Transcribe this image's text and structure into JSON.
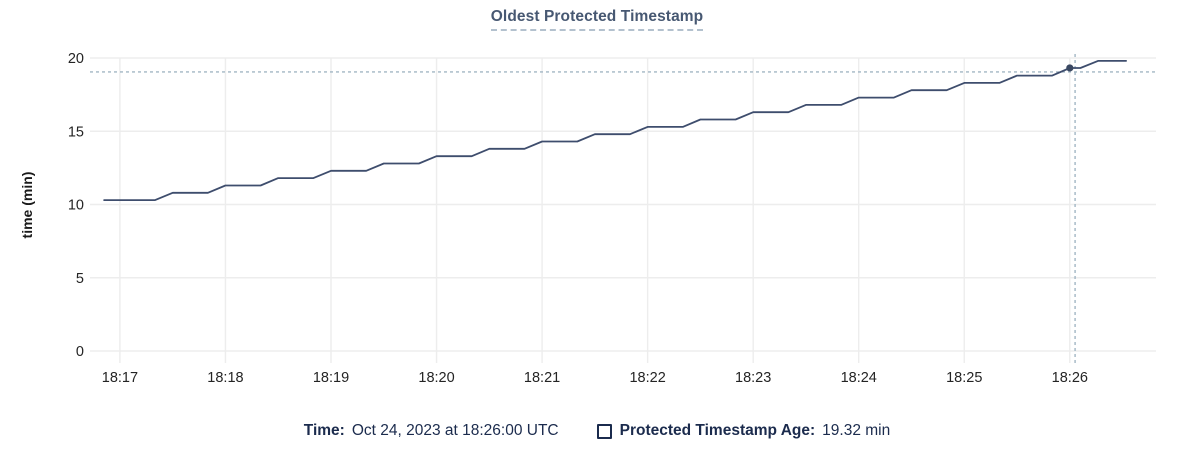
{
  "chart_data": {
    "type": "line",
    "title": "Oldest Protected Timestamp",
    "ylabel": "time (min)",
    "xlabel": "",
    "grid": true,
    "x_encoding_note": "x values are seconds after 18:16:00 UTC",
    "xlim": [
      43,
      649
    ],
    "ylim": [
      0,
      20
    ],
    "y_ticks": [
      0,
      5,
      10,
      15,
      20
    ],
    "x_ticks": [
      60,
      120,
      180,
      240,
      300,
      360,
      420,
      480,
      540,
      600
    ],
    "x_ticklabels": [
      "18:17",
      "18:18",
      "18:19",
      "18:20",
      "18:21",
      "18:22",
      "18:23",
      "18:24",
      "18:25",
      "18:26"
    ],
    "series": [
      {
        "name": "Protected Timestamp Age",
        "color": "#3e4d6d",
        "points": [
          [
            51,
            10.3
          ],
          [
            80,
            10.3
          ],
          [
            90,
            10.8
          ],
          [
            110,
            10.8
          ],
          [
            120,
            11.3
          ],
          [
            140,
            11.3
          ],
          [
            150,
            11.8
          ],
          [
            170,
            11.8
          ],
          [
            180,
            12.3
          ],
          [
            200,
            12.3
          ],
          [
            210,
            12.8
          ],
          [
            230,
            12.8
          ],
          [
            240,
            13.3
          ],
          [
            260,
            13.3
          ],
          [
            270,
            13.8
          ],
          [
            290,
            13.8
          ],
          [
            300,
            14.3
          ],
          [
            320,
            14.3
          ],
          [
            330,
            14.8
          ],
          [
            350,
            14.8
          ],
          [
            360,
            15.3
          ],
          [
            380,
            15.3
          ],
          [
            390,
            15.8
          ],
          [
            410,
            15.8
          ],
          [
            420,
            16.3
          ],
          [
            440,
            16.3
          ],
          [
            450,
            16.8
          ],
          [
            470,
            16.8
          ],
          [
            480,
            17.3
          ],
          [
            500,
            17.3
          ],
          [
            510,
            17.8
          ],
          [
            530,
            17.8
          ],
          [
            540,
            18.3
          ],
          [
            560,
            18.3
          ],
          [
            570,
            18.8
          ],
          [
            590,
            18.8
          ],
          [
            600,
            19.32
          ],
          [
            606,
            19.32
          ],
          [
            616,
            19.8
          ],
          [
            632,
            19.8
          ]
        ]
      }
    ],
    "hover": {
      "crosshair_x": 603,
      "crosshair_y_value": 19.05,
      "marker": {
        "x": 600,
        "value": 19.32
      }
    },
    "footer": {
      "time_label": "Time:",
      "time_value": "Oct 24, 2023 at 18:26:00 UTC",
      "series_label": "Protected Timestamp Age:",
      "series_value": "19.32 min"
    }
  },
  "colors": {
    "series_line": "#3e4d6d",
    "marker_dot": "#3a4862",
    "crosshair": "#a2b6c4",
    "gridline": "#ededed",
    "axis_text": "#242424",
    "title_text": "#475872",
    "legend_text": "#1b2b4d"
  },
  "icons": {
    "series_swatch": "square-outline"
  }
}
